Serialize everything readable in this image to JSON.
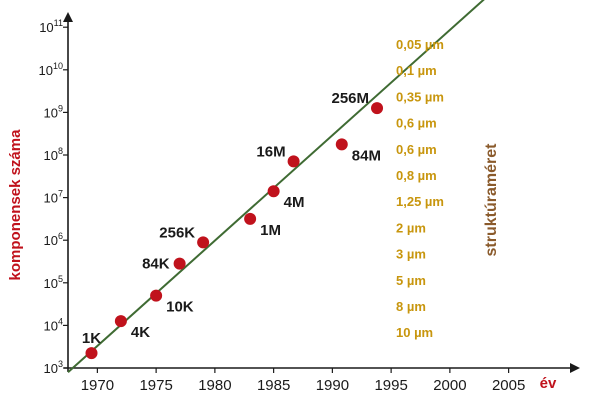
{
  "chart_data": {
    "type": "scatter",
    "xlabel": "év",
    "ylabel": "komponensek száma",
    "xlim": [
      1967.5,
      2010
    ],
    "y_log_range": [
      3,
      11.8
    ],
    "y_scale": "log10",
    "x_ticks": [
      1970,
      1975,
      1980,
      1985,
      1990,
      1995,
      2000,
      2005
    ],
    "y_ticks": [
      {
        "exp": 3,
        "base": "10",
        "sup": "3"
      },
      {
        "exp": 4,
        "base": "10",
        "sup": "4"
      },
      {
        "exp": 5,
        "base": "10",
        "sup": "5"
      },
      {
        "exp": 6,
        "base": "10",
        "sup": "6"
      },
      {
        "exp": 7,
        "base": "10",
        "sup": "7"
      },
      {
        "exp": 8,
        "base": "10",
        "sup": "8"
      },
      {
        "exp": 9,
        "base": "10",
        "sup": "9"
      },
      {
        "exp": 10,
        "base": "10",
        "sup": "10"
      },
      {
        "exp": 11,
        "base": "10",
        "sup": "11"
      }
    ],
    "points": [
      {
        "label": "1K",
        "x": 1969.5,
        "log_y": 3.35,
        "label_pos": "above"
      },
      {
        "label": "4K",
        "x": 1972,
        "log_y": 4.1,
        "label_pos": "below-right"
      },
      {
        "label": "10K",
        "x": 1975,
        "log_y": 4.7,
        "label_pos": "below-right"
      },
      {
        "label": "84K",
        "x": 1977,
        "log_y": 5.45,
        "label_pos": "left"
      },
      {
        "label": "256K",
        "x": 1979,
        "log_y": 5.95,
        "label_pos": "above-left"
      },
      {
        "label": "1M",
        "x": 1983,
        "log_y": 6.5,
        "label_pos": "below-right"
      },
      {
        "label": "4M",
        "x": 1985,
        "log_y": 7.15,
        "label_pos": "below-right"
      },
      {
        "label": "16M",
        "x": 1986.7,
        "log_y": 7.85,
        "label_pos": "above-left"
      },
      {
        "label": "84M",
        "x": 1990.8,
        "log_y": 8.25,
        "label_pos": "below-right"
      },
      {
        "label": "256M",
        "x": 1993.8,
        "log_y": 9.1,
        "label_pos": "above-left"
      }
    ],
    "trend_line": {
      "x": [
        1967.5,
        2003.5
      ],
      "log_y": [
        2.9,
        11.8
      ]
    },
    "feature_sizes_title": "struktúraméret",
    "feature_sizes": [
      "0,05 µm",
      "0,1 µm",
      "0,35 µm",
      "0,6 µm",
      "0,6 µm",
      "0,8 µm",
      "1,25 µm",
      "2 µm",
      "3 µm",
      "5 µm",
      "8 µm",
      "10 µm"
    ],
    "colors": {
      "point": "#c0121c",
      "trend": "#3f6b33",
      "axis": "#1a1a1a",
      "axis_title": "#c0121c",
      "feature": "#c8960e",
      "feature_title": "#8a5a2b"
    }
  }
}
